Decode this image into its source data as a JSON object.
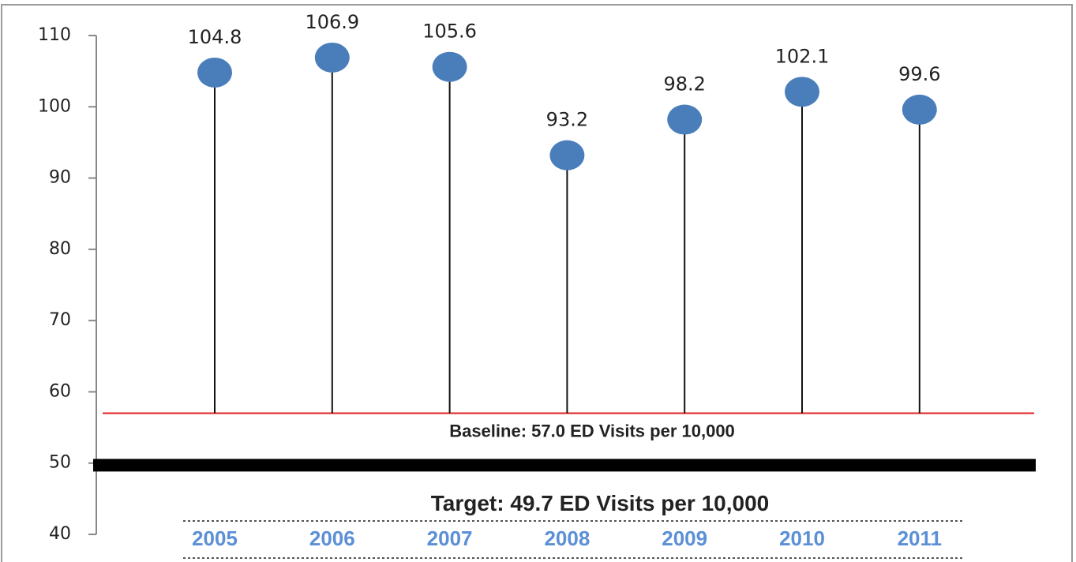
{
  "chart_data": {
    "type": "lollipop",
    "categories": [
      "2005",
      "2006",
      "2007",
      "2008",
      "2009",
      "2010",
      "2011"
    ],
    "values": [
      104.8,
      106.9,
      105.6,
      93.2,
      98.2,
      102.1,
      99.6
    ],
    "color": "#4a7ebb",
    "ylim": [
      40,
      110
    ],
    "yticks": [
      40,
      50,
      60,
      70,
      80,
      90,
      100,
      110
    ],
    "baseline": {
      "value": 57,
      "label": "Baseline: 57.0 ED Visits per 10,000",
      "color": "#e02020"
    },
    "target": {
      "value": 49.7,
      "label": "Target: 49.7  ED Visits per 10,000",
      "color": "#000000"
    }
  }
}
